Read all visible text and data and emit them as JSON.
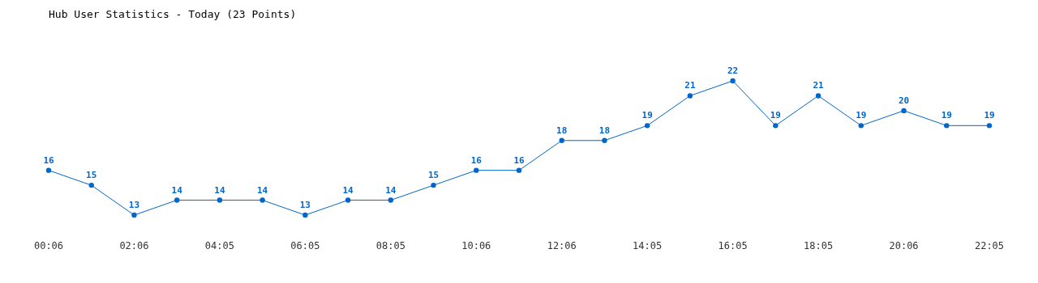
{
  "chart_data": {
    "type": "line",
    "title": "Hub User Statistics - Today (23 Points)",
    "categories": [
      "00:06",
      null,
      "02:06",
      null,
      "04:05",
      null,
      "06:05",
      null,
      "08:05",
      null,
      "10:06",
      null,
      "12:06",
      null,
      "14:05",
      null,
      "16:05",
      null,
      "18:05",
      null,
      "20:06",
      null,
      "22:05"
    ],
    "series": [
      {
        "color": "#0066cc",
        "values": [
          16,
          15,
          13,
          14,
          14,
          14,
          13,
          14,
          14,
          15,
          16,
          16,
          18,
          18,
          19,
          21,
          22,
          19,
          21,
          19,
          20,
          19,
          19
        ]
      }
    ],
    "data_labels": true,
    "marker": "circle"
  }
}
